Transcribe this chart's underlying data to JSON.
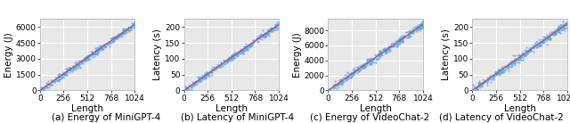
{
  "plots": [
    {
      "xlabel": "Length",
      "ylabel": "Energy (J)",
      "caption": "(a) Energy of MiniGPT-4",
      "xlim": [
        0,
        1024
      ],
      "ylim": [
        0,
        6750
      ],
      "yticks": [
        0,
        1500,
        3000,
        4500,
        6000
      ],
      "xticks": [
        0,
        256,
        512,
        768,
        1024
      ],
      "x_slope": 6.1,
      "y_intercept": 0,
      "noise_scale": 150,
      "n_points": 400
    },
    {
      "xlabel": "Length",
      "ylabel": "Latency (s)",
      "caption": "(b) Latency of MiniGPT-4",
      "xlim": [
        0,
        1024
      ],
      "ylim": [
        0,
        225
      ],
      "yticks": [
        0,
        50,
        100,
        150,
        200
      ],
      "xticks": [
        0,
        256,
        512,
        768,
        1024
      ],
      "x_slope": 0.203,
      "y_intercept": 0,
      "noise_scale": 5,
      "n_points": 400
    },
    {
      "xlabel": "Length",
      "ylabel": "Energy (J)",
      "caption": "(c) Energy of VideoChat-2",
      "xlim": [
        0,
        1024
      ],
      "ylim": [
        0,
        9500
      ],
      "yticks": [
        0,
        2000,
        4000,
        6000,
        8000
      ],
      "xticks": [
        0,
        256,
        512,
        768,
        1024
      ],
      "x_slope": 8.6,
      "y_intercept": 0,
      "noise_scale": 250,
      "n_points": 400
    },
    {
      "xlabel": "Length",
      "ylabel": "Latency (s)",
      "caption": "(d) Latency of VideoChat-2",
      "xlim": [
        0,
        1024
      ],
      "ylim": [
        0,
        225
      ],
      "yticks": [
        0,
        50,
        100,
        150,
        200
      ],
      "xticks": [
        0,
        256,
        512,
        768,
        1024
      ],
      "x_slope": 0.205,
      "y_intercept": 0,
      "noise_scale": 6,
      "n_points": 400
    }
  ],
  "dot_color": "#4dacf7",
  "line_color": "#e84040",
  "dot_size": 2.5,
  "dot_alpha": 0.7,
  "background_color": "#e8e8e8",
  "caption_fontsize": 7.5,
  "axis_label_fontsize": 7.5,
  "tick_fontsize": 6.5
}
